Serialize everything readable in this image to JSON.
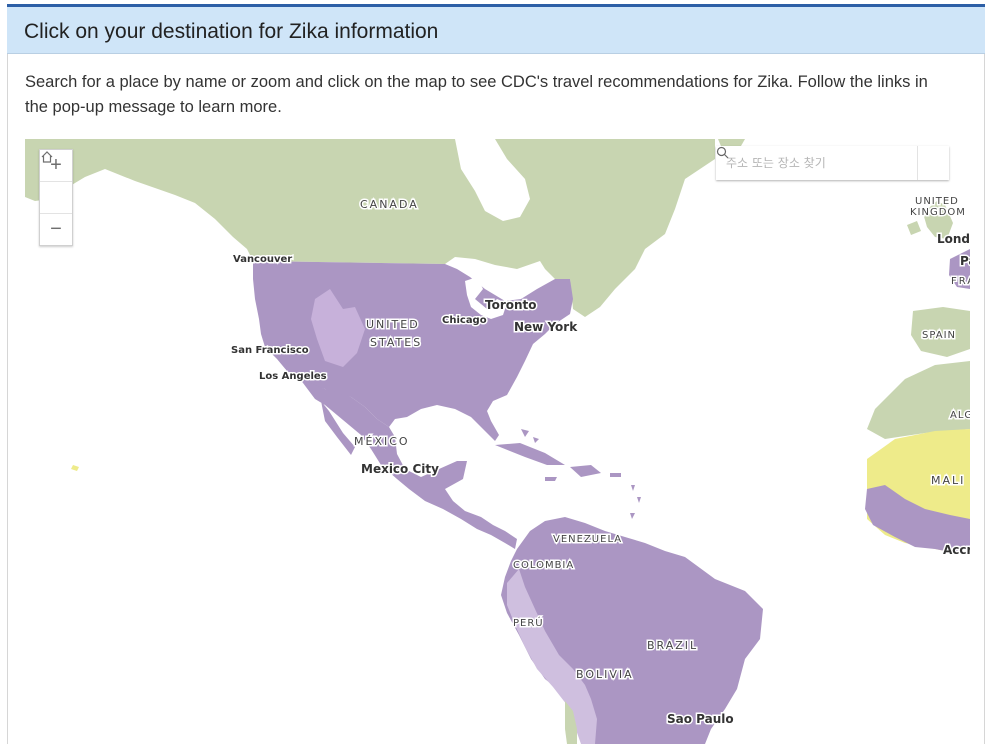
{
  "header": {
    "title": "Click on your destination for Zika information"
  },
  "description": "Search for a place by name or zoom and click on the map to see CDC's travel recommendations for Zika. Follow the links in the pop-up message to learn more.",
  "map": {
    "search": {
      "placeholder": "주소 또는 장소 찾기"
    },
    "zoom": {
      "in": "+",
      "out": "−"
    },
    "legend_colors": {
      "zika_risk": "#ab96c3",
      "no_risk": "#c8d5b1",
      "lower_risk": "#cfbfdf",
      "africa_risk": "#eeeb8a",
      "water": "#ffffff"
    },
    "labels": {
      "canada": "CANADA",
      "us1": "UNITED",
      "us2": "STATES",
      "mexico": "MÉXICO",
      "mexico_city": "Mexico City",
      "vancouver": "Vancouver",
      "san_francisco": "San Francisco",
      "los_angeles": "Los Angeles",
      "chicago": "Chicago",
      "toronto": "Toronto",
      "new_york": "New York",
      "venezuela": "VENEZUELA",
      "colombia": "COLOMBIA",
      "peru": "PERÚ",
      "brazil": "BRAZIL",
      "bolivia": "BOLIVIA",
      "sao_paulo": "Sao Paulo",
      "uk1": "UNITED",
      "uk2": "KINGDOM",
      "london": "Londo",
      "paris": "Pa",
      "france": "FRA",
      "spain": "SPAIN",
      "algeria": "ALG",
      "mali": "MALI",
      "accra": "Accr"
    }
  }
}
